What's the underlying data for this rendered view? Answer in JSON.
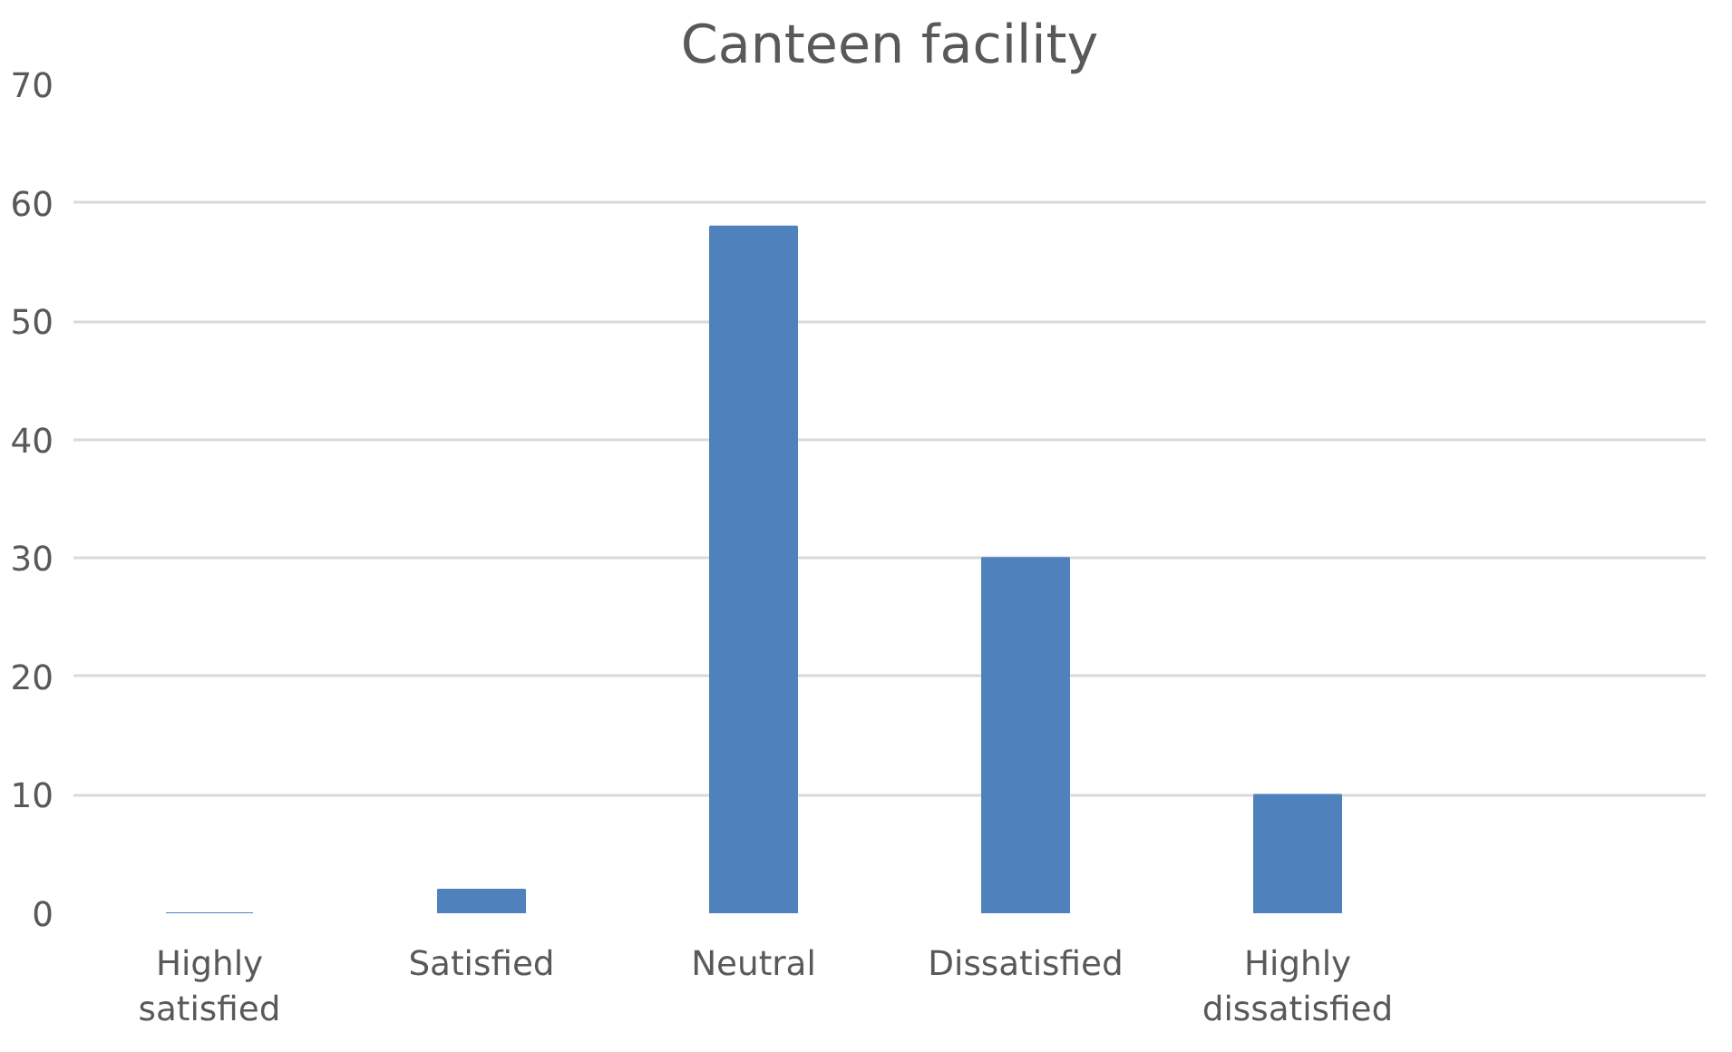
{
  "chart_data": {
    "type": "bar",
    "title": "Canteen facility",
    "categories": [
      "Highly satisfied",
      "Satisfied",
      "Neutral",
      "Dissatisfied",
      "Highly dissatisfied",
      null
    ],
    "values": [
      0,
      2,
      58,
      30,
      10,
      null
    ],
    "color": "#4f81bd",
    "ylim": [
      0,
      70
    ],
    "yticks": [
      0,
      10,
      20,
      30,
      40,
      50,
      60,
      70
    ],
    "grid": "y"
  }
}
